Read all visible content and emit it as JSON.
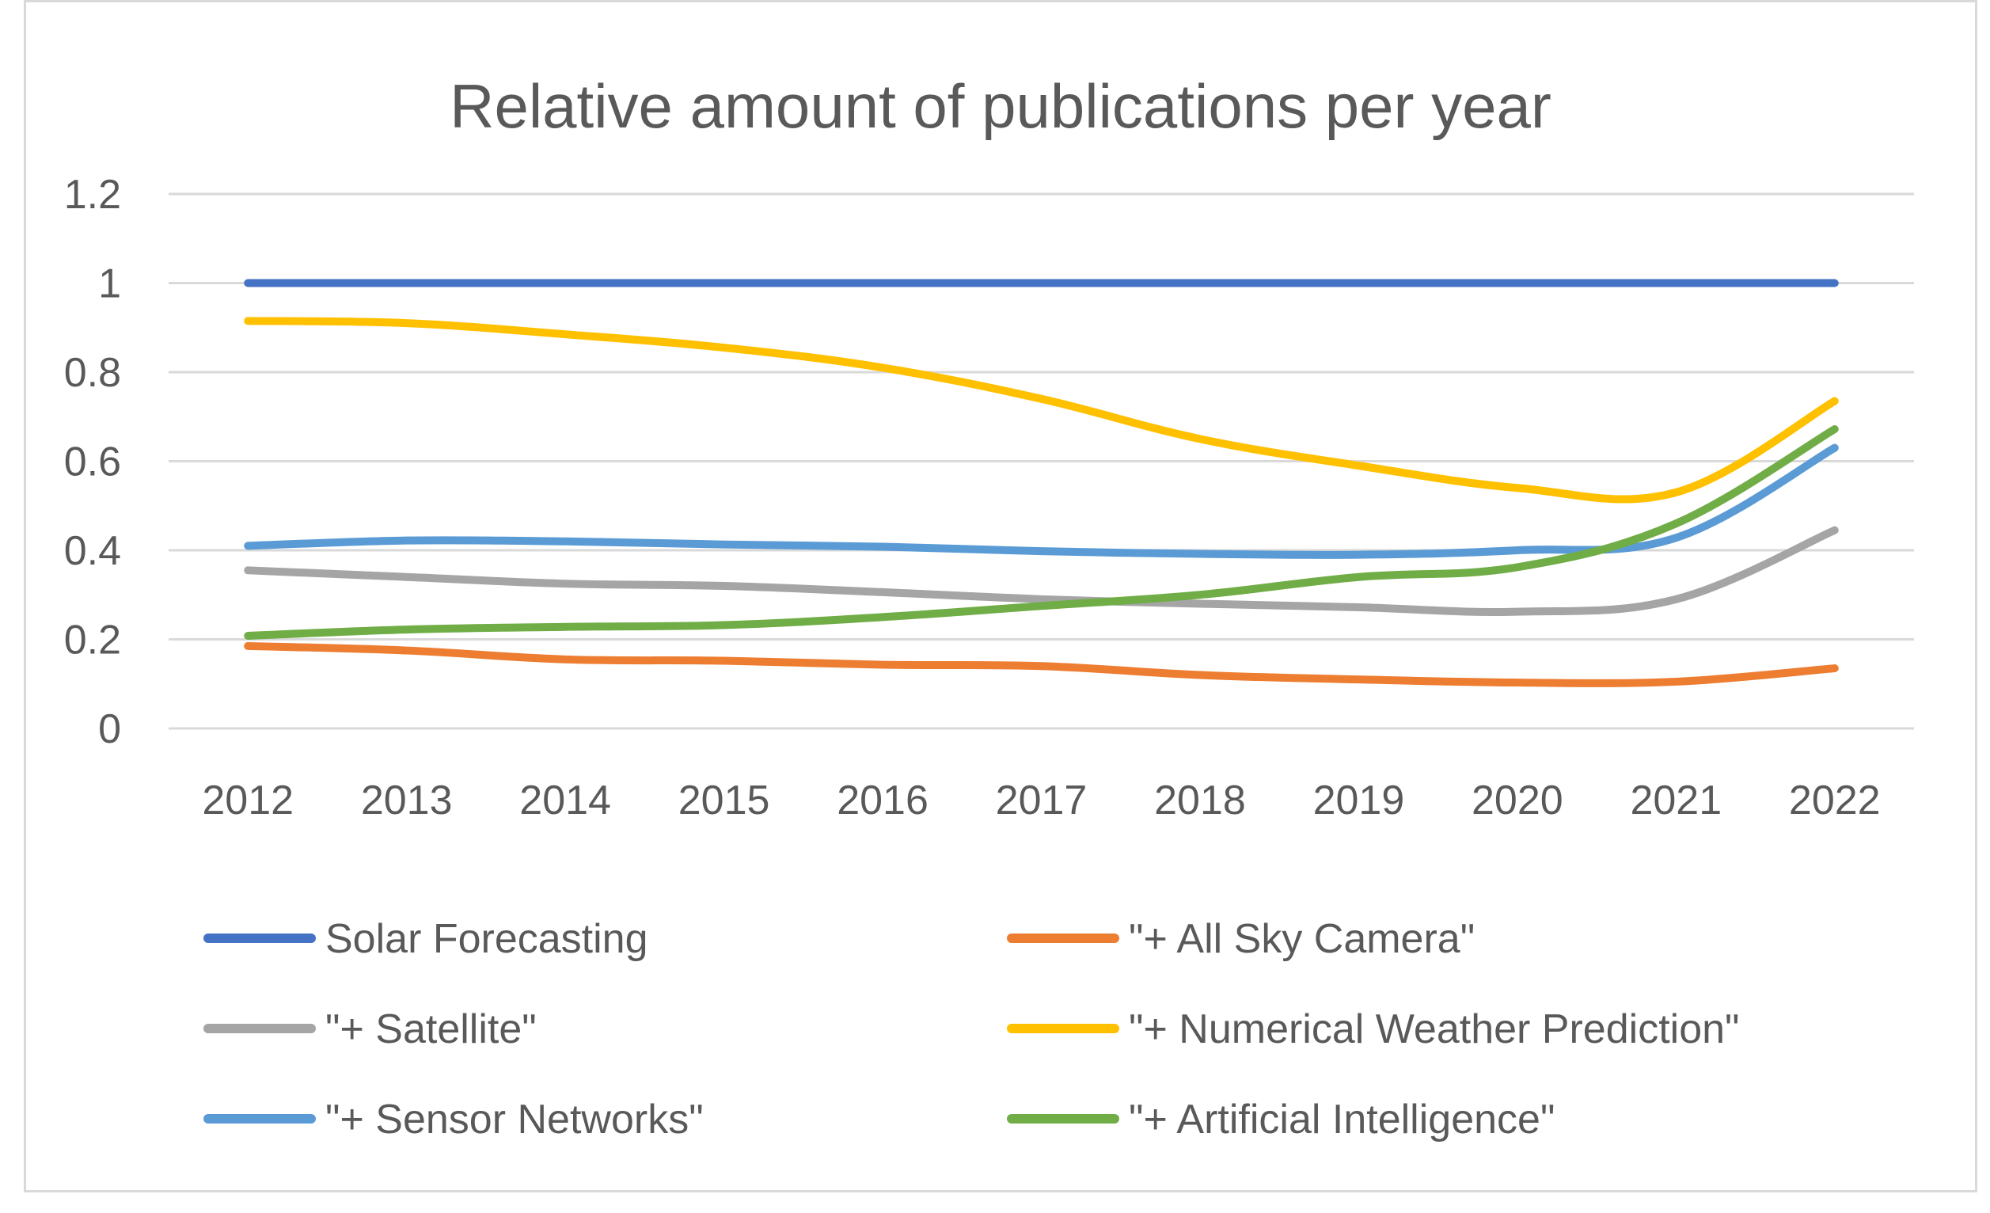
{
  "chart_data": {
    "type": "line",
    "title": "Relative amount of publications per year",
    "xlabel": "",
    "ylabel": "",
    "categories": [
      "2012",
      "2013",
      "2014",
      "2015",
      "2016",
      "2017",
      "2018",
      "2019",
      "2020",
      "2021",
      "2022"
    ],
    "y_ticks": [
      "0",
      "0.2",
      "0.4",
      "0.6",
      "0.8",
      "1",
      "1.2"
    ],
    "ylim": [
      0,
      1.2
    ],
    "grid": "horizontal",
    "legend_position": "bottom",
    "series": [
      {
        "name": "Solar Forecasting",
        "color": "#4472c4",
        "values": [
          1,
          1,
          1,
          1,
          1,
          1,
          1,
          1,
          1,
          1,
          1
        ]
      },
      {
        "name": "\"+ All Sky Camera\"",
        "color": "#ed7d31",
        "values": [
          0.185,
          0.175,
          0.155,
          0.152,
          0.143,
          0.14,
          0.12,
          0.11,
          0.103,
          0.105,
          0.135
        ]
      },
      {
        "name": "\"+ Satellite\"",
        "color": "#a5a5a5",
        "values": [
          0.355,
          0.34,
          0.325,
          0.32,
          0.306,
          0.29,
          0.28,
          0.272,
          0.262,
          0.29,
          0.445
        ]
      },
      {
        "name": "\"+ Numerical Weather Prediction\"",
        "color": "#ffc000",
        "values": [
          0.915,
          0.91,
          0.885,
          0.855,
          0.81,
          0.74,
          0.65,
          0.59,
          0.54,
          0.53,
          0.735
        ]
      },
      {
        "name": "\"+ Sensor Networks\"",
        "color": "#5b9bd5",
        "values": [
          0.41,
          0.422,
          0.42,
          0.413,
          0.408,
          0.398,
          0.392,
          0.39,
          0.4,
          0.428,
          0.63
        ]
      },
      {
        "name": "\"+ Artificial Intelligence\"",
        "color": "#70ad47",
        "values": [
          0.208,
          0.222,
          0.228,
          0.232,
          0.25,
          0.275,
          0.3,
          0.34,
          0.362,
          0.46,
          0.672
        ]
      }
    ]
  }
}
